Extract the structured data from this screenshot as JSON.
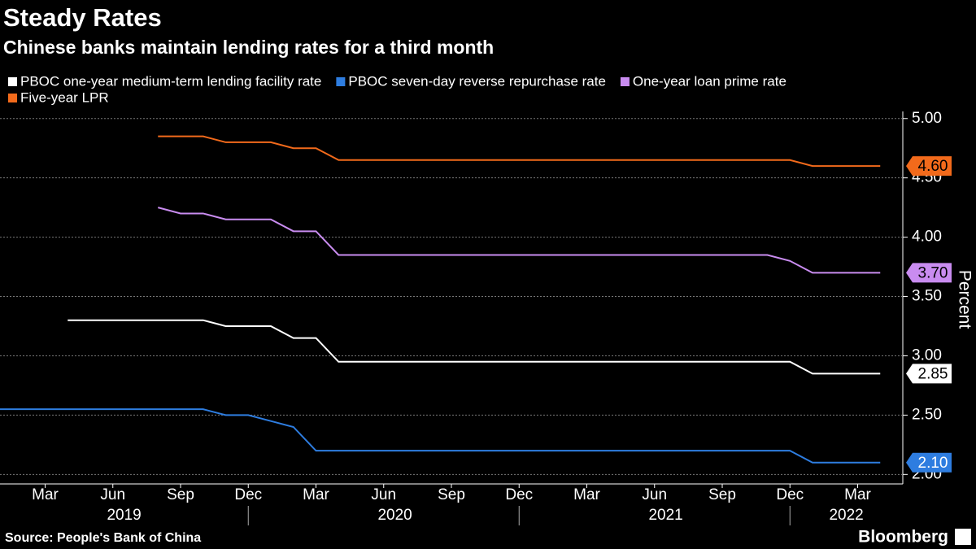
{
  "chart_data": {
    "type": "line",
    "title": "Steady Rates",
    "subtitle": "Chinese banks maintain lending rates for a third month",
    "y_label": "Percent",
    "source": "Source: People's Bank of China",
    "brand": "Bloomberg",
    "x": [
      "2019-01",
      "2019-02",
      "2019-03",
      "2019-04",
      "2019-05",
      "2019-06",
      "2019-07",
      "2019-08",
      "2019-09",
      "2019-10",
      "2019-11",
      "2019-12",
      "2020-01",
      "2020-02",
      "2020-03",
      "2020-04",
      "2020-05",
      "2020-06",
      "2020-07",
      "2020-08",
      "2020-09",
      "2020-10",
      "2020-11",
      "2020-12",
      "2021-01",
      "2021-02",
      "2021-03",
      "2021-04",
      "2021-05",
      "2021-06",
      "2021-07",
      "2021-08",
      "2021-09",
      "2021-10",
      "2021-11",
      "2021-12",
      "2022-01",
      "2022-02",
      "2022-03",
      "2022-04"
    ],
    "xlim": [
      "2019-01",
      "2022-05"
    ],
    "xticks": [
      {
        "value": "2019-03",
        "label": "Mar"
      },
      {
        "value": "2019-06",
        "label": "Jun"
      },
      {
        "value": "2019-09",
        "label": "Sep"
      },
      {
        "value": "2019-12",
        "label": "Dec"
      },
      {
        "value": "2020-03",
        "label": "Mar"
      },
      {
        "value": "2020-06",
        "label": "Jun"
      },
      {
        "value": "2020-09",
        "label": "Sep"
      },
      {
        "value": "2020-12",
        "label": "Dec"
      },
      {
        "value": "2021-03",
        "label": "Mar"
      },
      {
        "value": "2021-06",
        "label": "Jun"
      },
      {
        "value": "2021-09",
        "label": "Sep"
      },
      {
        "value": "2021-12",
        "label": "Dec"
      },
      {
        "value": "2022-03",
        "label": "Mar"
      }
    ],
    "year_ticks": [
      2019,
      2020,
      2021,
      2022
    ],
    "ylim": [
      1.92,
      5.06
    ],
    "yticks": [
      {
        "value": 2,
        "label": "2.00"
      },
      {
        "value": 2.5,
        "label": "2.50"
      },
      {
        "value": 3,
        "label": "3.00"
      },
      {
        "value": 3.5,
        "label": "3.50"
      },
      {
        "value": 4,
        "label": "4.00"
      },
      {
        "value": 4.5,
        "label": "4.50"
      },
      {
        "value": 5,
        "label": "5.00"
      }
    ],
    "grid": true,
    "series": [
      {
        "name": "PBOC one-year medium-term lending facility rate",
        "color": "#ffffff",
        "end_label": "2.85",
        "values": [
          null,
          null,
          null,
          3.3,
          3.3,
          3.3,
          3.3,
          3.3,
          3.3,
          3.3,
          3.25,
          3.25,
          3.25,
          3.15,
          3.15,
          2.95,
          2.95,
          2.95,
          2.95,
          2.95,
          2.95,
          2.95,
          2.95,
          2.95,
          2.95,
          2.95,
          2.95,
          2.95,
          2.95,
          2.95,
          2.95,
          2.95,
          2.95,
          2.95,
          2.95,
          2.95,
          2.85,
          2.85,
          2.85,
          2.85
        ]
      },
      {
        "name": "PBOC seven-day reverse repurchase rate",
        "color": "#2e7de0",
        "end_label": "2.10",
        "values": [
          2.55,
          2.55,
          2.55,
          2.55,
          2.55,
          2.55,
          2.55,
          2.55,
          2.55,
          2.55,
          2.5,
          2.5,
          2.45,
          2.4,
          2.2,
          2.2,
          2.2,
          2.2,
          2.2,
          2.2,
          2.2,
          2.2,
          2.2,
          2.2,
          2.2,
          2.2,
          2.2,
          2.2,
          2.2,
          2.2,
          2.2,
          2.2,
          2.2,
          2.2,
          2.2,
          2.2,
          2.1,
          2.1,
          2.1,
          2.1
        ]
      },
      {
        "name": "One-year loan prime rate",
        "color": "#c98cf0",
        "end_label": "3.70",
        "values": [
          null,
          null,
          null,
          null,
          null,
          null,
          null,
          4.25,
          4.2,
          4.2,
          4.15,
          4.15,
          4.15,
          4.05,
          4.05,
          3.85,
          3.85,
          3.85,
          3.85,
          3.85,
          3.85,
          3.85,
          3.85,
          3.85,
          3.85,
          3.85,
          3.85,
          3.85,
          3.85,
          3.85,
          3.85,
          3.85,
          3.85,
          3.85,
          3.85,
          3.8,
          3.7,
          3.7,
          3.7,
          3.7
        ]
      },
      {
        "name": "Five-year LPR",
        "color": "#f26a1b",
        "end_label": "4.60",
        "values": [
          null,
          null,
          null,
          null,
          null,
          null,
          null,
          4.85,
          4.85,
          4.85,
          4.8,
          4.8,
          4.8,
          4.75,
          4.75,
          4.65,
          4.65,
          4.65,
          4.65,
          4.65,
          4.65,
          4.65,
          4.65,
          4.65,
          4.65,
          4.65,
          4.65,
          4.65,
          4.65,
          4.65,
          4.65,
          4.65,
          4.65,
          4.65,
          4.65,
          4.65,
          4.6,
          4.6,
          4.6,
          4.6
        ]
      }
    ]
  }
}
